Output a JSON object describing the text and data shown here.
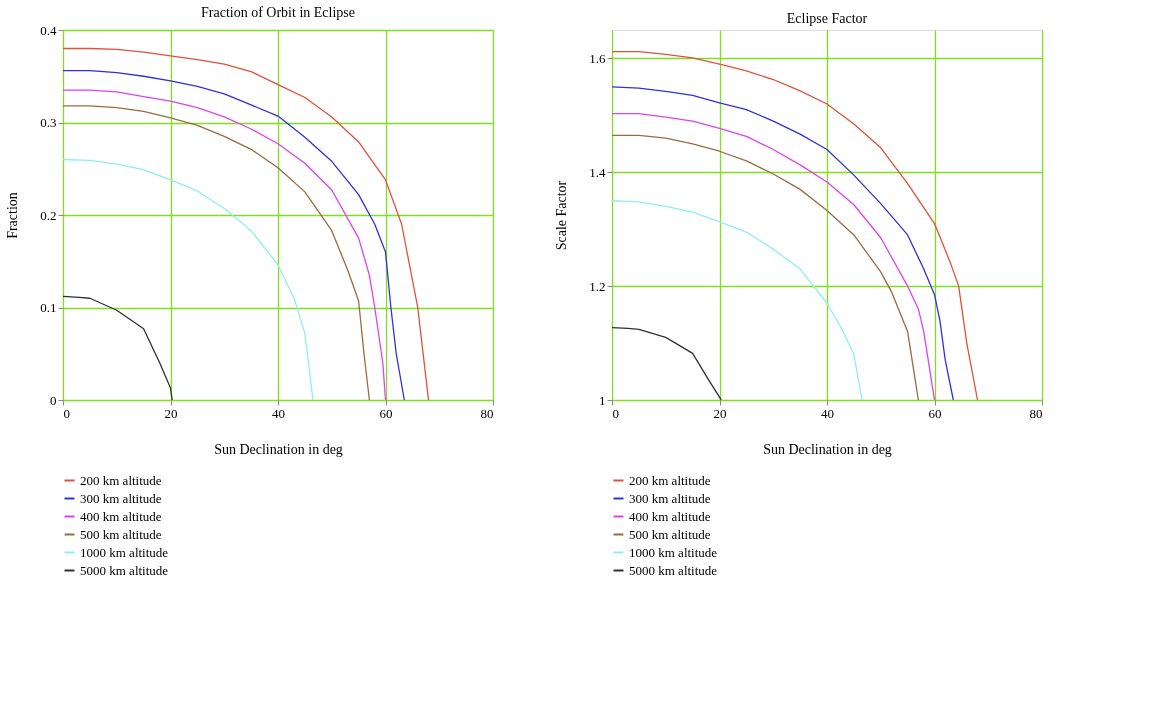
{
  "chart_data": [
    {
      "type": "line",
      "title": "Fraction of Orbit in Eclipse",
      "xlabel": "Sun Declination in deg",
      "ylabel": "Fraction",
      "xlim": [
        0,
        80
      ],
      "ylim": [
        0,
        0.4
      ],
      "xticks": [
        0,
        20,
        40,
        60,
        80
      ],
      "yticks": [
        0,
        0.1,
        0.2,
        0.3,
        0.4
      ],
      "grid": true,
      "legend": "bottom",
      "marker": "none",
      "line_style": "solid",
      "series": [
        {
          "name": "200 km altitude",
          "color": "#e0503a",
          "x": [
            0,
            5,
            10,
            15,
            20,
            25,
            30,
            35,
            40,
            45,
            50,
            55,
            60,
            63,
            64,
            66,
            68
          ],
          "values": [
            0.38,
            0.38,
            0.379,
            0.376,
            0.372,
            0.368,
            0.363,
            0.355,
            0.341,
            0.327,
            0.306,
            0.279,
            0.238,
            0.19,
            0.16,
            0.1,
            0
          ]
        },
        {
          "name": "300 km altitude",
          "color": "#3030e0",
          "x": [
            0,
            5,
            10,
            15,
            20,
            25,
            30,
            35,
            40,
            45,
            50,
            55,
            58,
            60,
            61,
            62,
            63.5
          ],
          "values": [
            0.356,
            0.356,
            0.354,
            0.35,
            0.345,
            0.339,
            0.331,
            0.319,
            0.307,
            0.284,
            0.258,
            0.222,
            0.19,
            0.16,
            0.1,
            0.05,
            0
          ]
        },
        {
          "name": "400 km altitude",
          "color": "#e040f0",
          "x": [
            0,
            5,
            10,
            15,
            20,
            25,
            30,
            35,
            40,
            45,
            50,
            55,
            57,
            58,
            59.5,
            60
          ],
          "values": [
            0.335,
            0.335,
            0.333,
            0.328,
            0.323,
            0.316,
            0.306,
            0.293,
            0.277,
            0.256,
            0.227,
            0.175,
            0.135,
            0.1,
            0.04,
            0
          ]
        },
        {
          "name": "500 km altitude",
          "color": "#9a6a40",
          "x": [
            0,
            5,
            10,
            15,
            20,
            25,
            30,
            35,
            40,
            45,
            50,
            53,
            55,
            56,
            57
          ],
          "values": [
            0.318,
            0.318,
            0.316,
            0.312,
            0.305,
            0.297,
            0.285,
            0.271,
            0.251,
            0.225,
            0.183,
            0.14,
            0.107,
            0.05,
            0
          ]
        },
        {
          "name": "1000 km altitude",
          "color": "#90eef0",
          "x": [
            0,
            5,
            10,
            15,
            20,
            25,
            30,
            35,
            40,
            43,
            45,
            46.5
          ],
          "values": [
            0.26,
            0.259,
            0.255,
            0.249,
            0.238,
            0.226,
            0.207,
            0.183,
            0.146,
            0.11,
            0.072,
            0
          ]
        },
        {
          "name": "5000 km altitude",
          "color": "#303030",
          "x": [
            0,
            3,
            5,
            10,
            15,
            18,
            20,
            20.3
          ],
          "values": [
            0.112,
            0.111,
            0.11,
            0.097,
            0.077,
            0.04,
            0.013,
            0
          ]
        }
      ]
    },
    {
      "type": "line",
      "title": "Eclipse Factor",
      "xlabel": "Sun Declination in deg",
      "ylabel": "Scale Factor",
      "xlim": [
        0,
        80
      ],
      "ylim": [
        1,
        1.65
      ],
      "xticks": [
        0,
        20,
        40,
        60,
        80
      ],
      "yticks": [
        1,
        1.2,
        1.4,
        1.6
      ],
      "grid": true,
      "legend": "bottom",
      "marker": "none",
      "line_style": "solid",
      "series": [
        {
          "name": "200 km altitude",
          "color": "#e0503a",
          "x": [
            0,
            5,
            10,
            15,
            20,
            25,
            30,
            35,
            40,
            45,
            50,
            55,
            60,
            63,
            64.5,
            66,
            68
          ],
          "values": [
            1.612,
            1.612,
            1.607,
            1.601,
            1.59,
            1.578,
            1.563,
            1.543,
            1.52,
            1.485,
            1.443,
            1.38,
            1.31,
            1.24,
            1.2,
            1.1,
            1
          ]
        },
        {
          "name": "300 km altitude",
          "color": "#3030e0",
          "x": [
            0,
            5,
            10,
            15,
            20,
            25,
            30,
            35,
            40,
            45,
            50,
            55,
            58,
            60,
            61,
            62,
            63.5
          ],
          "values": [
            1.55,
            1.548,
            1.542,
            1.535,
            1.522,
            1.51,
            1.49,
            1.467,
            1.44,
            1.395,
            1.345,
            1.29,
            1.23,
            1.185,
            1.14,
            1.07,
            1
          ]
        },
        {
          "name": "400 km altitude",
          "color": "#e040f0",
          "x": [
            0,
            5,
            10,
            15,
            20,
            25,
            30,
            35,
            40,
            45,
            50,
            55,
            57,
            58,
            59.5,
            60
          ],
          "values": [
            1.503,
            1.503,
            1.497,
            1.49,
            1.477,
            1.463,
            1.44,
            1.413,
            1.383,
            1.343,
            1.285,
            1.2,
            1.16,
            1.12,
            1.03,
            1
          ]
        },
        {
          "name": "500 km altitude",
          "color": "#9a6a40",
          "x": [
            0,
            5,
            10,
            15,
            20,
            25,
            30,
            35,
            40,
            45,
            50,
            52,
            55,
            56,
            57
          ],
          "values": [
            1.465,
            1.465,
            1.46,
            1.45,
            1.437,
            1.42,
            1.397,
            1.37,
            1.333,
            1.29,
            1.225,
            1.19,
            1.12,
            1.06,
            1
          ]
        },
        {
          "name": "1000 km altitude",
          "color": "#90eef0",
          "x": [
            0,
            5,
            10,
            15,
            20,
            25,
            30,
            35,
            40,
            43,
            45,
            46.5
          ],
          "values": [
            1.35,
            1.348,
            1.34,
            1.33,
            1.313,
            1.295,
            1.265,
            1.23,
            1.17,
            1.12,
            1.08,
            1
          ]
        },
        {
          "name": "5000 km altitude",
          "color": "#303030",
          "x": [
            0,
            3,
            5,
            10,
            15,
            18,
            20,
            20.3
          ],
          "values": [
            1.127,
            1.126,
            1.124,
            1.11,
            1.082,
            1.035,
            1.005,
            1
          ]
        }
      ]
    }
  ]
}
